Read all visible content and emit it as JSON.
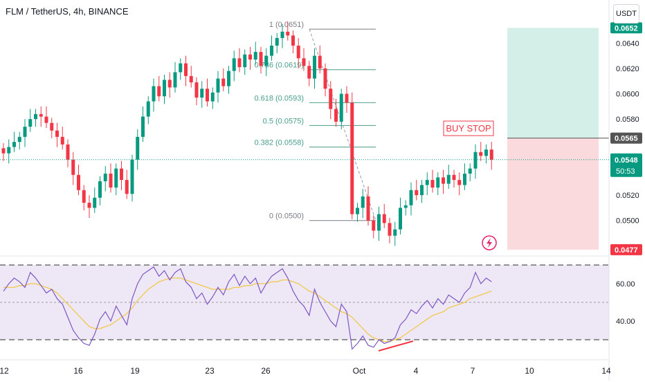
{
  "header": {
    "title": "FLM / TetherUS, 4h, BINANCE",
    "currency": "USDT"
  },
  "colors": {
    "up": "#089981",
    "down": "#f23645",
    "rsi_line": "#7e57c2",
    "rsi_ma": "#f2c94c",
    "rsi_band": "#ede7f6",
    "fib_label": "#4a9e8a",
    "tp_zone": "#d4efe8",
    "sl_zone": "#fbdadd",
    "last_price": "#089981",
    "stop_line": "#555555"
  },
  "price_axis": {
    "ticks": [
      "0.0640",
      "0.0620",
      "0.0600",
      "0.0580",
      "0.0520",
      "0.0500"
    ],
    "tick_values": [
      0.064,
      0.062,
      0.06,
      0.058,
      0.052,
      0.05
    ],
    "badge_target": "0.0652",
    "badge_stop": "0.0565",
    "badge_price": "0.0548",
    "badge_countdown": "50:53",
    "badge_stoploss": "0.0477"
  },
  "x_axis": {
    "labels": [
      "12",
      "16",
      "19",
      "23",
      "26",
      "Oct",
      "4",
      "7",
      "10",
      "14"
    ]
  },
  "fib_levels": [
    {
      "label": "1 (0.0651)",
      "value": 0.0651
    },
    {
      "label": "0.786 (0.0619)",
      "value": 0.0619
    },
    {
      "label": "0.618 (0.0593)",
      "value": 0.0593
    },
    {
      "label": "0.5 (0.0575)",
      "value": 0.0575
    },
    {
      "label": "0.382 (0.0558)",
      "value": 0.0558
    },
    {
      "label": "0 (0.0500)",
      "value": 0.05
    }
  ],
  "buy_stop_label": "BUY STOP",
  "rsi": {
    "ticks": [
      "60.00",
      "40.00"
    ],
    "tick_values": [
      60,
      40
    ],
    "upper": 70,
    "lower": 30,
    "mid": 50
  },
  "chart_data": {
    "type": "candlestick",
    "symbol": "FLM / TetherUS",
    "timeframe": "4h",
    "exchange": "BINANCE",
    "ylim": [
      0.0472,
      0.0674
    ],
    "last_price": 0.0548,
    "buy_stop": 0.0565,
    "take_profit": 0.0652,
    "stop_loss": 0.0477,
    "closes": [
      0.0553,
      0.0558,
      0.0562,
      0.0566,
      0.0574,
      0.058,
      0.0584,
      0.0582,
      0.0577,
      0.0571,
      0.0566,
      0.056,
      0.0548,
      0.0536,
      0.0524,
      0.0514,
      0.051,
      0.0518,
      0.0531,
      0.0537,
      0.0526,
      0.0541,
      0.0532,
      0.0521,
      0.0548,
      0.0566,
      0.0582,
      0.0594,
      0.0606,
      0.0598,
      0.0611,
      0.0605,
      0.0617,
      0.0624,
      0.0614,
      0.0609,
      0.0597,
      0.0604,
      0.0594,
      0.0601,
      0.0612,
      0.0606,
      0.0618,
      0.0628,
      0.0621,
      0.0631,
      0.0627,
      0.0633,
      0.0622,
      0.063,
      0.0638,
      0.0644,
      0.0649,
      0.0646,
      0.0638,
      0.0628,
      0.0622,
      0.0612,
      0.063,
      0.062,
      0.0604,
      0.0588,
      0.0578,
      0.06,
      0.0593,
      0.0505,
      0.051,
      0.0519,
      0.05,
      0.0492,
      0.0505,
      0.0498,
      0.0488,
      0.0493,
      0.051,
      0.0512,
      0.0524,
      0.052,
      0.0528,
      0.0532,
      0.0526,
      0.0534,
      0.0529,
      0.0536,
      0.0532,
      0.0528,
      0.0537,
      0.0541,
      0.0554,
      0.0551,
      0.0556,
      0.0548
    ],
    "rsi": [
      56,
      60,
      63,
      61,
      58,
      66,
      63,
      59,
      55,
      57,
      52,
      49,
      42,
      35,
      31,
      28,
      27,
      33,
      41,
      45,
      40,
      48,
      43,
      38,
      52,
      60,
      65,
      67,
      69,
      64,
      67,
      62,
      66,
      68,
      61,
      58,
      52,
      55,
      49,
      53,
      58,
      54,
      61,
      65,
      59,
      64,
      60,
      63,
      55,
      60,
      64,
      66,
      68,
      63,
      56,
      51,
      48,
      43,
      57,
      50,
      45,
      40,
      37,
      49,
      45,
      25,
      28,
      32,
      27,
      26,
      30,
      28,
      29,
      31,
      38,
      41,
      46,
      44,
      48,
      51,
      47,
      52,
      49,
      54,
      52,
      50,
      55,
      58,
      66,
      60,
      63,
      61
    ],
    "rsi_ma": [
      58,
      58,
      58,
      59,
      59,
      60,
      60,
      59,
      58,
      57,
      55,
      52,
      49,
      46,
      43,
      40,
      37,
      36,
      36,
      37,
      38,
      40,
      42,
      44,
      47,
      51,
      54,
      57,
      59,
      61,
      62,
      63,
      63,
      63,
      62,
      61,
      60,
      59,
      58,
      57,
      57,
      57,
      57,
      58,
      58,
      59,
      59,
      60,
      60,
      60,
      61,
      61,
      62,
      62,
      61,
      60,
      58,
      56,
      55,
      53,
      51,
      49,
      47,
      45,
      44,
      42,
      39,
      36,
      33,
      31,
      30,
      29,
      29,
      30,
      31,
      33,
      35,
      37,
      39,
      41,
      43,
      44,
      45,
      47,
      48,
      49,
      50,
      52,
      53,
      54,
      55,
      56
    ]
  }
}
